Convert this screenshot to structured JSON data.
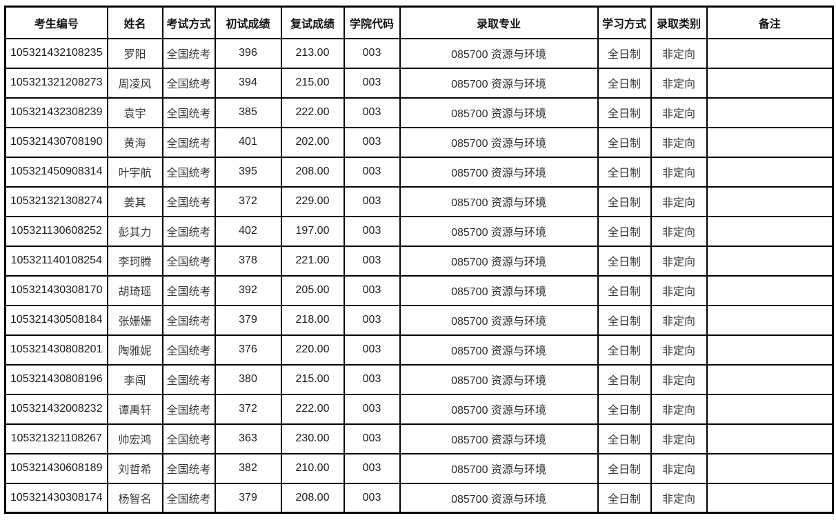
{
  "table": {
    "columns": [
      {
        "key": "candidate_id",
        "label": "考生编号"
      },
      {
        "key": "name",
        "label": "姓名"
      },
      {
        "key": "exam_method",
        "label": "考试方式"
      },
      {
        "key": "initial_score",
        "label": "初试成绩"
      },
      {
        "key": "retest_score",
        "label": "复试成绩"
      },
      {
        "key": "college_code",
        "label": "学院代码"
      },
      {
        "key": "major",
        "label": "录取专业"
      },
      {
        "key": "study_mode",
        "label": "学习方式"
      },
      {
        "key": "admission_category",
        "label": "录取类别"
      },
      {
        "key": "remarks",
        "label": "备注"
      }
    ],
    "rows": [
      [
        "105321432108235",
        "罗阳",
        "全国统考",
        "396",
        "213.00",
        "003",
        "085700 资源与环境",
        "全日制",
        "非定向",
        ""
      ],
      [
        "105321321208273",
        "周凌风",
        "全国统考",
        "394",
        "215.00",
        "003",
        "085700 资源与环境",
        "全日制",
        "非定向",
        ""
      ],
      [
        "105321432308239",
        "袁宇",
        "全国统考",
        "385",
        "222.00",
        "003",
        "085700 资源与环境",
        "全日制",
        "非定向",
        ""
      ],
      [
        "105321430708190",
        "黄海",
        "全国统考",
        "401",
        "202.00",
        "003",
        "085700 资源与环境",
        "全日制",
        "非定向",
        ""
      ],
      [
        "105321450908314",
        "叶宇航",
        "全国统考",
        "395",
        "208.00",
        "003",
        "085700 资源与环境",
        "全日制",
        "非定向",
        ""
      ],
      [
        "105321321308274",
        "姜其",
        "全国统考",
        "372",
        "229.00",
        "003",
        "085700 资源与环境",
        "全日制",
        "非定向",
        ""
      ],
      [
        "105321130608252",
        "彭其力",
        "全国统考",
        "402",
        "197.00",
        "003",
        "085700 资源与环境",
        "全日制",
        "非定向",
        ""
      ],
      [
        "105321140108254",
        "李珂腾",
        "全国统考",
        "378",
        "221.00",
        "003",
        "085700 资源与环境",
        "全日制",
        "非定向",
        ""
      ],
      [
        "105321430308170",
        "胡琦瑶",
        "全国统考",
        "392",
        "205.00",
        "003",
        "085700 资源与环境",
        "全日制",
        "非定向",
        ""
      ],
      [
        "105321430508184",
        "张姗姗",
        "全国统考",
        "379",
        "218.00",
        "003",
        "085700 资源与环境",
        "全日制",
        "非定向",
        ""
      ],
      [
        "105321430808201",
        "陶雅妮",
        "全国统考",
        "376",
        "220.00",
        "003",
        "085700 资源与环境",
        "全日制",
        "非定向",
        ""
      ],
      [
        "105321430808196",
        "李闯",
        "全国统考",
        "380",
        "215.00",
        "003",
        "085700 资源与环境",
        "全日制",
        "非定向",
        ""
      ],
      [
        "105321432008232",
        "谭禹轩",
        "全国统考",
        "372",
        "222.00",
        "003",
        "085700 资源与环境",
        "全日制",
        "非定向",
        ""
      ],
      [
        "105321321108267",
        "帅宏鸿",
        "全国统考",
        "363",
        "230.00",
        "003",
        "085700 资源与环境",
        "全日制",
        "非定向",
        ""
      ],
      [
        "105321430608189",
        "刘哲希",
        "全国统考",
        "382",
        "210.00",
        "003",
        "085700 资源与环境",
        "全日制",
        "非定向",
        ""
      ],
      [
        "105321430308174",
        "杨智名",
        "全国统考",
        "379",
        "208.00",
        "003",
        "085700 资源与环境",
        "全日制",
        "非定向",
        ""
      ]
    ],
    "colors": {
      "border": "#000000",
      "background": "#ffffff",
      "header_text": "#111111",
      "cell_text": "#1c1c1c"
    }
  }
}
